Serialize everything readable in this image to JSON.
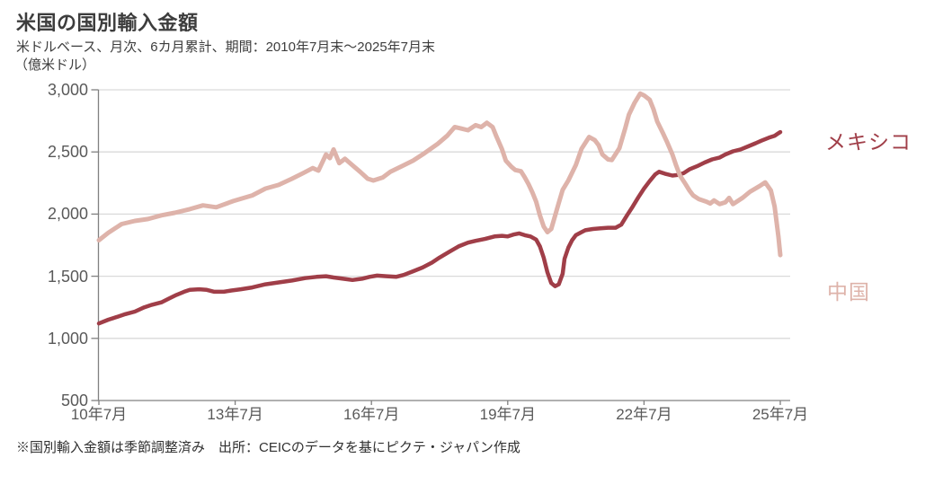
{
  "header": {
    "title": "米国の国別輸入金額",
    "subtitle": "米ドルベース、月次、6カ月累計、期間：2010年7月末～2025年7月末",
    "unit_label": "（億米ドル）"
  },
  "footer": {
    "note": "※国別輸入金額は季節調整済み　出所：CEICのデータを基にピクテ・ジャパン作成"
  },
  "colors": {
    "mexico_line": "#a03e48",
    "china_line": "#deb3aa",
    "grid": "#d9d9d9",
    "axis": "#808080",
    "tick_text": "#595959",
    "title_text": "#3d3d3d"
  },
  "chart_data": {
    "type": "line",
    "title": "米国の国別輸入金額",
    "subtitle": "米ドルベース、月次、6カ月累計、期間：2010年7月末～2025年7月末",
    "ylabel": "億米ドル",
    "xlabel": "",
    "grid": true,
    "legend_position": "right",
    "x_axis": {
      "unit": "months since 2010-07",
      "range_months": [
        0,
        180
      ],
      "tick_months": [
        0,
        36,
        72,
        108,
        144,
        180
      ],
      "tick_labels": [
        "10年7月",
        "13年7月",
        "16年7月",
        "19年7月",
        "22年7月",
        "25年7月"
      ]
    },
    "y_axis": {
      "range": [
        500,
        3000
      ],
      "tick_values": [
        3000,
        2500,
        2000,
        1500,
        1000,
        500
      ],
      "tick_labels": [
        "3,000",
        "2,500",
        "2,000",
        "1,500",
        "1,000",
        "500"
      ]
    },
    "series": [
      {
        "name": "メキシコ",
        "color": "#a03e48",
        "points": [
          [
            0,
            1120
          ],
          [
            2.5,
            1150
          ],
          [
            5,
            1175
          ],
          [
            7,
            1195
          ],
          [
            9.5,
            1215
          ],
          [
            12,
            1250
          ],
          [
            14,
            1270
          ],
          [
            16.5,
            1290
          ],
          [
            18.5,
            1320
          ],
          [
            20.5,
            1350
          ],
          [
            22.5,
            1375
          ],
          [
            24,
            1390
          ],
          [
            26.5,
            1395
          ],
          [
            28.5,
            1390
          ],
          [
            30.5,
            1375
          ],
          [
            33,
            1375
          ],
          [
            35,
            1385
          ],
          [
            37.5,
            1395
          ],
          [
            40.5,
            1410
          ],
          [
            44,
            1435
          ],
          [
            47.5,
            1450
          ],
          [
            51,
            1465
          ],
          [
            54.5,
            1485
          ],
          [
            57.5,
            1495
          ],
          [
            60,
            1500
          ],
          [
            62,
            1490
          ],
          [
            64.5,
            1480
          ],
          [
            67,
            1470
          ],
          [
            69.5,
            1480
          ],
          [
            71.5,
            1495
          ],
          [
            73.5,
            1505
          ],
          [
            76,
            1500
          ],
          [
            78.5,
            1495
          ],
          [
            80.5,
            1510
          ],
          [
            83,
            1540
          ],
          [
            85.5,
            1570
          ],
          [
            88,
            1610
          ],
          [
            90,
            1650
          ],
          [
            92.5,
            1695
          ],
          [
            95,
            1740
          ],
          [
            97.5,
            1770
          ],
          [
            99.5,
            1785
          ],
          [
            102,
            1800
          ],
          [
            104.5,
            1820
          ],
          [
            106.5,
            1825
          ],
          [
            108,
            1820
          ],
          [
            109.5,
            1835
          ],
          [
            111,
            1845
          ],
          [
            112.5,
            1830
          ],
          [
            114,
            1820
          ],
          [
            115.5,
            1795
          ],
          [
            116.5,
            1740
          ],
          [
            117.5,
            1650
          ],
          [
            118.5,
            1530
          ],
          [
            119.5,
            1445
          ],
          [
            120.5,
            1420
          ],
          [
            121.5,
            1435
          ],
          [
            122.5,
            1520
          ],
          [
            123,
            1640
          ],
          [
            124,
            1730
          ],
          [
            125,
            1790
          ],
          [
            126,
            1830
          ],
          [
            127.5,
            1855
          ],
          [
            128.5,
            1870
          ],
          [
            130.5,
            1880
          ],
          [
            132.5,
            1885
          ],
          [
            134.5,
            1890
          ],
          [
            136.5,
            1890
          ],
          [
            138,
            1915
          ],
          [
            139.5,
            1990
          ],
          [
            141,
            2060
          ],
          [
            142.5,
            2135
          ],
          [
            144,
            2205
          ],
          [
            145.5,
            2265
          ],
          [
            147,
            2320
          ],
          [
            148,
            2340
          ],
          [
            149.5,
            2325
          ],
          [
            151.5,
            2310
          ],
          [
            153,
            2315
          ],
          [
            154.5,
            2330
          ],
          [
            156,
            2360
          ],
          [
            158,
            2385
          ],
          [
            160,
            2415
          ],
          [
            162,
            2440
          ],
          [
            164,
            2455
          ],
          [
            165.5,
            2480
          ],
          [
            167.5,
            2505
          ],
          [
            169.5,
            2520
          ],
          [
            171.5,
            2545
          ],
          [
            173.5,
            2570
          ],
          [
            175,
            2590
          ],
          [
            177,
            2615
          ],
          [
            178.5,
            2630
          ],
          [
            179.5,
            2650
          ],
          [
            180,
            2660
          ]
        ]
      },
      {
        "name": "中国",
        "color": "#deb3aa",
        "points": [
          [
            0,
            1790
          ],
          [
            2.5,
            1850
          ],
          [
            6,
            1920
          ],
          [
            9.5,
            1945
          ],
          [
            13,
            1960
          ],
          [
            16.5,
            1990
          ],
          [
            20,
            2010
          ],
          [
            24,
            2040
          ],
          [
            27.5,
            2070
          ],
          [
            31,
            2055
          ],
          [
            35.5,
            2105
          ],
          [
            40.5,
            2150
          ],
          [
            44,
            2205
          ],
          [
            47.5,
            2235
          ],
          [
            51,
            2285
          ],
          [
            54,
            2330
          ],
          [
            56.5,
            2370
          ],
          [
            58,
            2350
          ],
          [
            60,
            2480
          ],
          [
            61,
            2450
          ],
          [
            62,
            2520
          ],
          [
            63.5,
            2410
          ],
          [
            65,
            2445
          ],
          [
            66.5,
            2405
          ],
          [
            69,
            2340
          ],
          [
            71,
            2285
          ],
          [
            72.5,
            2270
          ],
          [
            75,
            2295
          ],
          [
            77,
            2340
          ],
          [
            80,
            2385
          ],
          [
            83,
            2430
          ],
          [
            86,
            2490
          ],
          [
            89.5,
            2565
          ],
          [
            92,
            2630
          ],
          [
            94,
            2700
          ],
          [
            95.5,
            2690
          ],
          [
            97.5,
            2675
          ],
          [
            99.5,
            2715
          ],
          [
            101,
            2700
          ],
          [
            102.5,
            2735
          ],
          [
            104,
            2700
          ],
          [
            105,
            2625
          ],
          [
            106.5,
            2520
          ],
          [
            107.5,
            2430
          ],
          [
            109,
            2380
          ],
          [
            110,
            2355
          ],
          [
            111.5,
            2345
          ],
          [
            112.5,
            2295
          ],
          [
            113.5,
            2240
          ],
          [
            114.5,
            2175
          ],
          [
            115.5,
            2100
          ],
          [
            116.5,
            1990
          ],
          [
            117.5,
            1900
          ],
          [
            118.5,
            1855
          ],
          [
            119.5,
            1880
          ],
          [
            120.5,
            1985
          ],
          [
            121.5,
            2090
          ],
          [
            122.5,
            2195
          ],
          [
            124,
            2270
          ],
          [
            126,
            2395
          ],
          [
            127.5,
            2525
          ],
          [
            129.5,
            2620
          ],
          [
            131,
            2595
          ],
          [
            132,
            2555
          ],
          [
            133,
            2480
          ],
          [
            134.5,
            2440
          ],
          [
            135.5,
            2435
          ],
          [
            137.5,
            2530
          ],
          [
            139,
            2685
          ],
          [
            140,
            2800
          ],
          [
            141.5,
            2895
          ],
          [
            143,
            2970
          ],
          [
            144,
            2955
          ],
          [
            145.5,
            2920
          ],
          [
            146.5,
            2845
          ],
          [
            147.5,
            2745
          ],
          [
            149,
            2650
          ],
          [
            150,
            2585
          ],
          [
            151.5,
            2480
          ],
          [
            152.5,
            2390
          ],
          [
            153.5,
            2310
          ],
          [
            155,
            2240
          ],
          [
            156,
            2190
          ],
          [
            157,
            2150
          ],
          [
            158.5,
            2120
          ],
          [
            160.5,
            2100
          ],
          [
            161.5,
            2085
          ],
          [
            162.5,
            2110
          ],
          [
            164,
            2080
          ],
          [
            165.5,
            2095
          ],
          [
            166.5,
            2130
          ],
          [
            167.5,
            2080
          ],
          [
            170,
            2130
          ],
          [
            172,
            2180
          ],
          [
            174.5,
            2225
          ],
          [
            176,
            2255
          ],
          [
            177.5,
            2190
          ],
          [
            178.5,
            2060
          ],
          [
            179,
            1940
          ],
          [
            179.5,
            1820
          ],
          [
            180,
            1670
          ]
        ]
      }
    ]
  }
}
